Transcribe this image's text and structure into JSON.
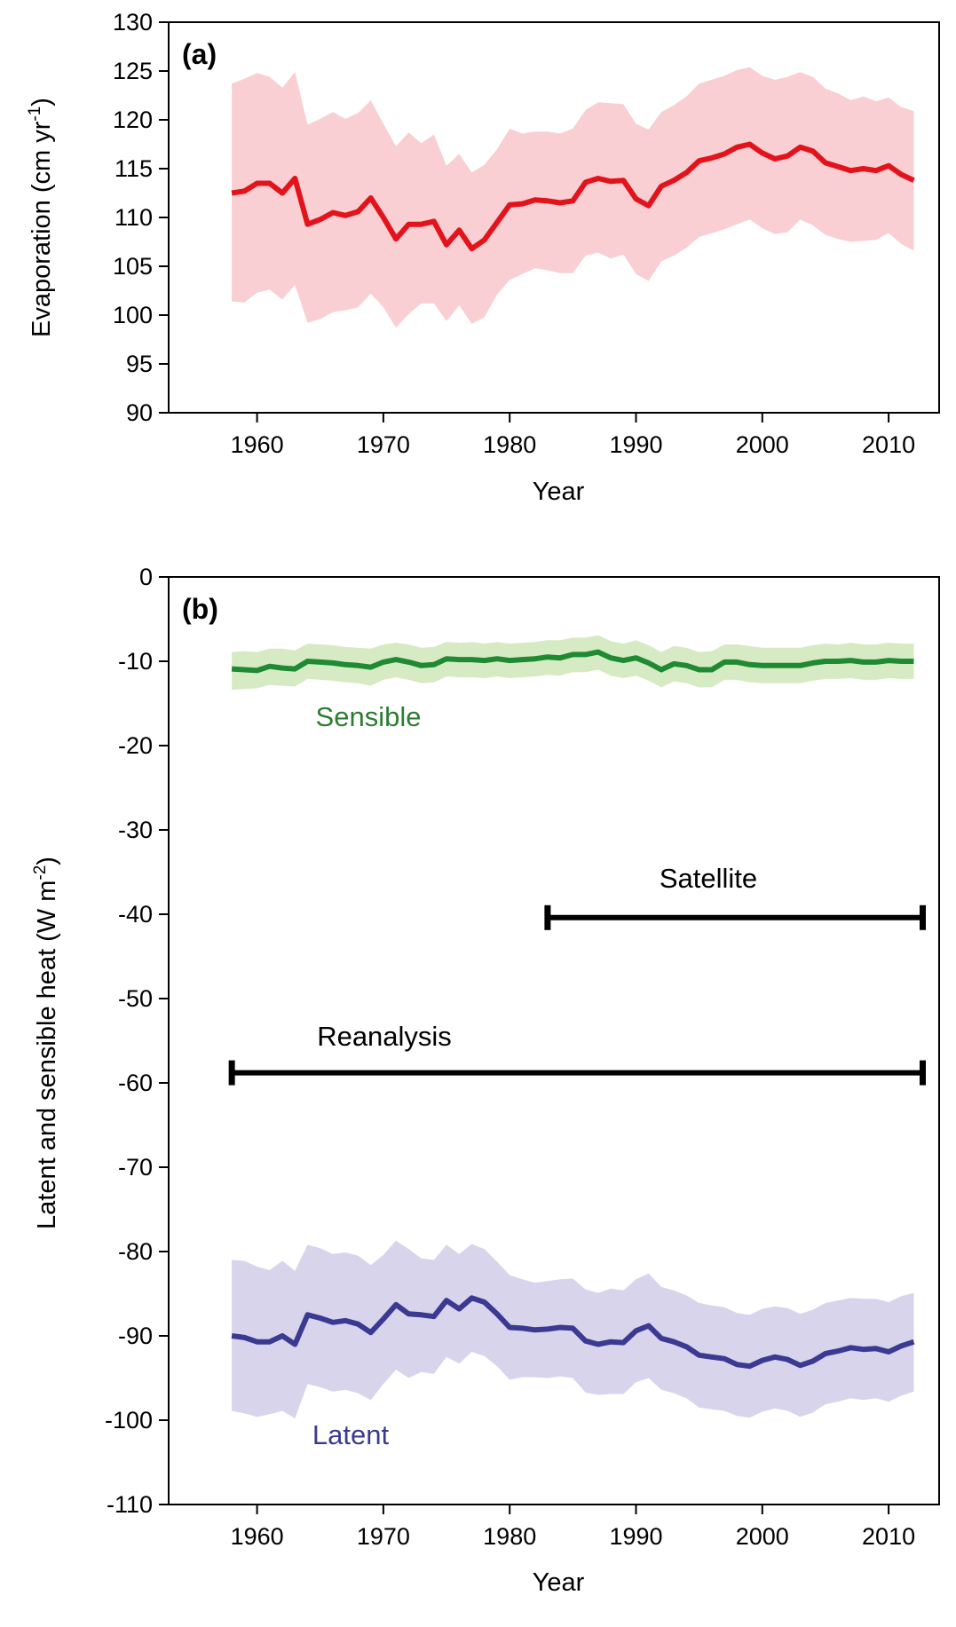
{
  "chart_data": [
    {
      "type": "line",
      "panel_label": "(a)",
      "xlabel": "Year",
      "ylabel": "Evaporation (cm yr",
      "ylabel_sup": "-1",
      "ylabel_tail": ")",
      "xlim": [
        1953,
        2014
      ],
      "ylim": [
        90,
        130
      ],
      "xticks": [
        1960,
        1970,
        1980,
        1990,
        2000,
        2010
      ],
      "yticks": [
        90,
        95,
        100,
        105,
        110,
        115,
        120,
        125,
        130
      ],
      "x": [
        1958,
        1959,
        1960,
        1961,
        1962,
        1963,
        1964,
        1965,
        1966,
        1967,
        1968,
        1969,
        1970,
        1971,
        1972,
        1973,
        1974,
        1975,
        1976,
        1977,
        1978,
        1979,
        1980,
        1981,
        1982,
        1983,
        1984,
        1985,
        1986,
        1987,
        1988,
        1989,
        1990,
        1991,
        1992,
        1993,
        1994,
        1995,
        1996,
        1997,
        1998,
        1999,
        2000,
        2001,
        2002,
        2003,
        2004,
        2005,
        2006,
        2007,
        2008,
        2009,
        2010,
        2011,
        2012
      ],
      "series": [
        {
          "color": "#e3131c",
          "band_color": "#f9cfd3",
          "values": [
            112.5,
            112.7,
            113.5,
            113.5,
            112.5,
            114.0,
            109.3,
            109.8,
            110.5,
            110.2,
            110.6,
            112.0,
            110.0,
            107.8,
            109.3,
            109.3,
            109.6,
            107.2,
            108.7,
            106.8,
            107.7,
            109.5,
            111.3,
            111.4,
            111.8,
            111.7,
            111.5,
            111.7,
            113.6,
            114.0,
            113.7,
            113.8,
            111.9,
            111.2,
            113.2,
            113.8,
            114.6,
            115.8,
            116.1,
            116.5,
            117.2,
            117.5,
            116.6,
            116.0,
            116.3,
            117.2,
            116.8,
            115.6,
            115.2,
            114.8,
            115.0,
            114.8,
            115.3,
            114.4,
            113.8
          ],
          "upper": [
            123.7,
            124.2,
            124.8,
            124.4,
            123.3,
            124.9,
            119.5,
            120.1,
            120.8,
            120.1,
            120.7,
            122.0,
            119.6,
            117.3,
            118.7,
            117.6,
            118.5,
            115.3,
            116.5,
            114.6,
            115.4,
            117.0,
            119.1,
            118.6,
            118.8,
            118.8,
            118.6,
            119.1,
            121.0,
            121.8,
            121.7,
            121.6,
            119.6,
            119.0,
            120.8,
            121.5,
            122.4,
            123.7,
            124.1,
            124.5,
            125.1,
            125.4,
            124.5,
            124.1,
            124.4,
            124.9,
            124.4,
            123.2,
            122.7,
            122.0,
            122.4,
            121.9,
            122.3,
            121.3,
            120.9
          ],
          "lower": [
            101.4,
            101.3,
            102.3,
            102.6,
            101.6,
            103.1,
            99.2,
            99.6,
            100.3,
            100.5,
            100.8,
            102.2,
            100.8,
            98.7,
            100.1,
            101.2,
            101.2,
            99.4,
            101.0,
            99.1,
            99.8,
            102.1,
            103.6,
            104.2,
            104.8,
            104.6,
            104.3,
            104.3,
            106.1,
            106.4,
            105.8,
            106.2,
            104.2,
            103.5,
            105.5,
            106.1,
            106.9,
            108.0,
            108.4,
            108.8,
            109.3,
            109.8,
            108.9,
            108.3,
            108.5,
            109.8,
            109.2,
            108.2,
            107.8,
            107.5,
            107.6,
            107.7,
            108.4,
            107.3,
            106.6
          ]
        }
      ]
    },
    {
      "type": "line",
      "panel_label": "(b)",
      "xlabel": "Year",
      "ylabel": "Latent and sensible heat (W m",
      "ylabel_sup": "-2",
      "ylabel_tail": ")",
      "xlim": [
        1953,
        2014
      ],
      "ylim": [
        -110,
        0
      ],
      "xticks": [
        1960,
        1970,
        1980,
        1990,
        2000,
        2010
      ],
      "yticks": [
        -110,
        -100,
        -90,
        -80,
        -70,
        -60,
        -50,
        -40,
        -30,
        -20,
        -10,
        0
      ],
      "x": [
        1958,
        1959,
        1960,
        1961,
        1962,
        1963,
        1964,
        1965,
        1966,
        1967,
        1968,
        1969,
        1970,
        1971,
        1972,
        1973,
        1974,
        1975,
        1976,
        1977,
        1978,
        1979,
        1980,
        1981,
        1982,
        1983,
        1984,
        1985,
        1986,
        1987,
        1988,
        1989,
        1990,
        1991,
        1992,
        1993,
        1994,
        1995,
        1996,
        1997,
        1998,
        1999,
        2000,
        2001,
        2002,
        2003,
        2004,
        2005,
        2006,
        2007,
        2008,
        2009,
        2010,
        2011,
        2012
      ],
      "series": [
        {
          "name": "Sensible",
          "color": "#1f8a32",
          "label_color": "#2e7d32",
          "band_color": "#d6ebc4",
          "values": [
            -10.9,
            -11.0,
            -11.1,
            -10.6,
            -10.8,
            -10.9,
            -10.0,
            -10.1,
            -10.2,
            -10.4,
            -10.5,
            -10.7,
            -10.1,
            -9.8,
            -10.1,
            -10.5,
            -10.4,
            -9.7,
            -9.8,
            -9.8,
            -9.9,
            -9.7,
            -9.9,
            -9.8,
            -9.7,
            -9.5,
            -9.6,
            -9.2,
            -9.2,
            -8.9,
            -9.6,
            -9.9,
            -9.6,
            -10.2,
            -11.0,
            -10.3,
            -10.5,
            -11.0,
            -11.0,
            -10.1,
            -10.1,
            -10.4,
            -10.5,
            -10.5,
            -10.5,
            -10.5,
            -10.2,
            -10.0,
            -10.0,
            -9.9,
            -10.1,
            -10.1,
            -9.9,
            -10.0,
            -10.0
          ],
          "upper": [
            -8.9,
            -8.8,
            -8.9,
            -8.5,
            -8.5,
            -8.7,
            -7.9,
            -8.0,
            -8.1,
            -8.3,
            -8.4,
            -8.5,
            -8.0,
            -7.8,
            -8.0,
            -8.4,
            -8.3,
            -7.7,
            -7.8,
            -7.7,
            -7.9,
            -7.7,
            -7.9,
            -7.8,
            -7.7,
            -7.5,
            -7.5,
            -7.2,
            -7.2,
            -6.9,
            -7.6,
            -7.9,
            -7.5,
            -8.1,
            -8.9,
            -8.2,
            -8.4,
            -8.9,
            -8.8,
            -8.0,
            -8.0,
            -8.2,
            -8.4,
            -8.4,
            -8.4,
            -8.4,
            -8.1,
            -7.9,
            -8.0,
            -7.8,
            -8.0,
            -8.0,
            -7.8,
            -7.9,
            -7.9
          ],
          "lower": [
            -13.4,
            -13.3,
            -13.2,
            -12.8,
            -12.9,
            -13.0,
            -12.1,
            -12.2,
            -12.3,
            -12.5,
            -12.6,
            -12.9,
            -12.2,
            -11.9,
            -12.2,
            -12.6,
            -12.5,
            -11.8,
            -11.9,
            -11.9,
            -12.0,
            -11.8,
            -12.0,
            -11.9,
            -11.8,
            -11.6,
            -11.7,
            -11.3,
            -11.3,
            -11.0,
            -11.7,
            -12.0,
            -11.7,
            -12.3,
            -13.1,
            -12.4,
            -12.6,
            -13.1,
            -13.1,
            -12.2,
            -12.2,
            -12.5,
            -12.6,
            -12.6,
            -12.6,
            -12.6,
            -12.3,
            -12.1,
            -12.1,
            -12.0,
            -12.2,
            -12.2,
            -12.0,
            -12.1,
            -12.1
          ]
        },
        {
          "name": "Latent",
          "color": "#3b3a92",
          "label_color": "#3b3a92",
          "band_color": "#d8d4ec",
          "values": [
            -90.0,
            -90.2,
            -90.7,
            -90.7,
            -90.0,
            -91.0,
            -87.5,
            -87.9,
            -88.4,
            -88.2,
            -88.6,
            -89.6,
            -88.0,
            -86.3,
            -87.4,
            -87.5,
            -87.7,
            -85.8,
            -86.8,
            -85.5,
            -86.0,
            -87.4,
            -89.0,
            -89.1,
            -89.3,
            -89.2,
            -89.0,
            -89.1,
            -90.6,
            -91.0,
            -90.7,
            -90.8,
            -89.4,
            -88.8,
            -90.3,
            -90.7,
            -91.3,
            -92.3,
            -92.5,
            -92.7,
            -93.4,
            -93.6,
            -92.9,
            -92.5,
            -92.8,
            -93.5,
            -93.0,
            -92.1,
            -91.8,
            -91.4,
            -91.6,
            -91.5,
            -91.9,
            -91.2,
            -90.7
          ],
          "upper": [
            -81.0,
            -81.1,
            -81.8,
            -82.2,
            -81.1,
            -82.3,
            -79.2,
            -79.6,
            -80.3,
            -80.1,
            -80.5,
            -81.6,
            -80.4,
            -78.7,
            -79.7,
            -80.8,
            -81.0,
            -79.2,
            -80.3,
            -79.1,
            -79.7,
            -81.2,
            -82.8,
            -83.3,
            -83.7,
            -83.5,
            -83.3,
            -83.2,
            -84.5,
            -84.9,
            -84.4,
            -84.6,
            -83.3,
            -82.6,
            -84.2,
            -84.6,
            -85.2,
            -86.1,
            -86.4,
            -86.6,
            -87.3,
            -87.5,
            -86.8,
            -86.5,
            -86.7,
            -87.4,
            -86.9,
            -86.1,
            -85.8,
            -85.5,
            -85.6,
            -85.6,
            -86.0,
            -85.3,
            -84.9
          ],
          "lower": [
            -98.9,
            -99.2,
            -99.6,
            -99.3,
            -98.9,
            -99.8,
            -95.7,
            -96.1,
            -96.6,
            -96.4,
            -96.8,
            -97.6,
            -95.7,
            -94.0,
            -95.0,
            -94.3,
            -94.5,
            -92.5,
            -93.3,
            -91.9,
            -92.4,
            -93.6,
            -95.2,
            -94.9,
            -94.9,
            -95.0,
            -94.8,
            -95.0,
            -96.7,
            -97.0,
            -96.9,
            -96.9,
            -95.5,
            -95.0,
            -96.4,
            -96.8,
            -97.4,
            -98.5,
            -98.7,
            -98.9,
            -99.5,
            -99.7,
            -99.0,
            -98.6,
            -98.9,
            -99.6,
            -99.1,
            -98.1,
            -97.8,
            -97.4,
            -97.6,
            -97.4,
            -97.8,
            -97.1,
            -96.6
          ]
        }
      ],
      "annotations": [
        {
          "text": "Satellite",
          "x_from": 1983,
          "x_to": 2012.7,
          "y": -40.4,
          "color": "#000000"
        },
        {
          "text": "Reanalysis",
          "x_from": 1958,
          "x_to": 2012.7,
          "y": -58.8,
          "color": "#000000"
        }
      ]
    }
  ]
}
